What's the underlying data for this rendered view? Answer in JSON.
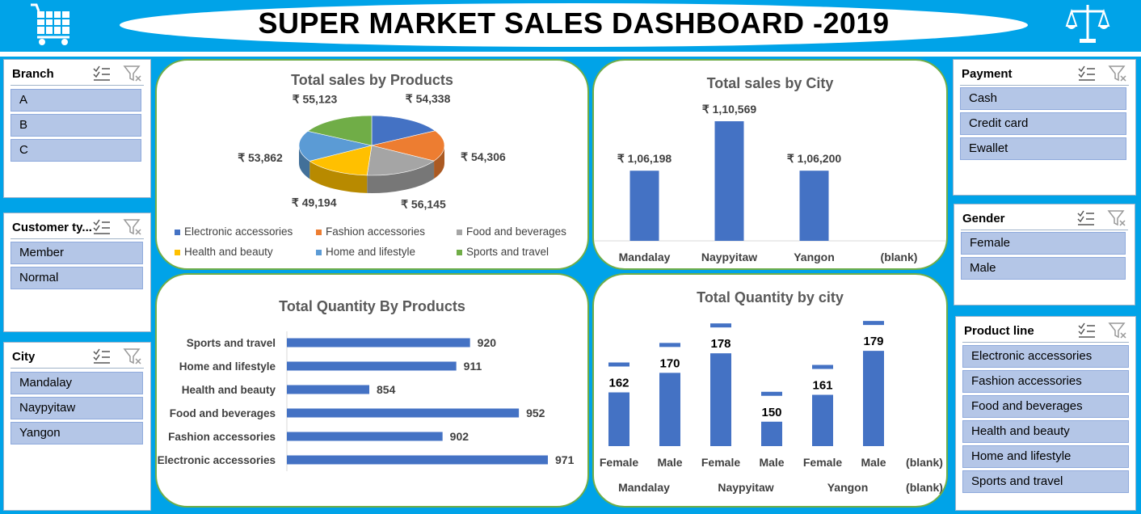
{
  "header": {
    "title": "SUPER MARKET SALES DASHBOARD -2019",
    "left_icon": "shopping-cart-icon",
    "right_icon": "balance-scale-icon"
  },
  "colors": {
    "background": "#00A3E8",
    "slicer_item": "#B4C6E7",
    "panel_border": "#70AD47",
    "bar": "#4472C4",
    "title_text": "#595959"
  },
  "slicers": {
    "branch": {
      "title": "Branch",
      "items": [
        "A",
        "B",
        "C"
      ]
    },
    "customer_type": {
      "title": "Customer ty...",
      "items": [
        "Member",
        "Normal"
      ]
    },
    "city": {
      "title": "City",
      "items": [
        "Mandalay",
        "Naypyitaw",
        "Yangon"
      ]
    },
    "payment": {
      "title": "Payment",
      "items": [
        "Cash",
        "Credit card",
        "Ewallet"
      ]
    },
    "gender": {
      "title": "Gender",
      "items": [
        "Female",
        "Male"
      ]
    },
    "product_line": {
      "title": "Product line",
      "items": [
        "Electronic accessories",
        "Fashion accessories",
        "Food and beverages",
        "Health and beauty",
        "Home and lifestyle",
        "Sports and travel"
      ]
    }
  },
  "chart_data": [
    {
      "type": "pie",
      "title": "Total sales  by Products",
      "slices": [
        {
          "name": "Electronic accessories",
          "value": 54338,
          "label": "₹ 54,338",
          "color": "#4472C4"
        },
        {
          "name": "Fashion accessories",
          "value": 54306,
          "label": "₹ 54,306",
          "color": "#ED7D31"
        },
        {
          "name": "Food and beverages",
          "value": 56145,
          "label": "₹ 56,145",
          "color": "#A5A5A5"
        },
        {
          "name": "Health and beauty",
          "value": 49194,
          "label": "₹ 49,194",
          "color": "#FFC000"
        },
        {
          "name": "Home and lifestyle",
          "value": 53862,
          "label": "₹ 53,862",
          "color": "#5B9BD5"
        },
        {
          "name": "Sports and travel",
          "value": 55123,
          "label": "₹ 55,123",
          "color": "#70AD47"
        }
      ],
      "legend": "bottom"
    },
    {
      "type": "bar",
      "title": "Total sales by City",
      "categories": [
        "Mandalay",
        "Naypyitaw",
        "Yangon",
        "(blank)"
      ],
      "values": [
        106198,
        110569,
        106200,
        null
      ],
      "labels": [
        "₹ 1,06,198",
        "₹ 1,10,569",
        "₹ 1,06,200",
        ""
      ],
      "ylim": [
        100000,
        112000
      ]
    },
    {
      "type": "bar",
      "orientation": "horizontal",
      "title": "Total Quantity By Products",
      "categories": [
        "Sports and travel",
        "Home and lifestyle",
        "Health and beauty",
        "Food and beverages",
        "Fashion accessories",
        "Electronic accessories"
      ],
      "values": [
        920,
        911,
        854,
        952,
        902,
        971
      ],
      "xlim": [
        800,
        980
      ]
    },
    {
      "type": "bar",
      "title": "Total  Quantity by city",
      "groups": [
        "Mandalay",
        "Naypyitaw",
        "Yangon",
        "(blank)"
      ],
      "categories": [
        "Female",
        "Male",
        "Female",
        "Male",
        "Female",
        "Male",
        "(blank)"
      ],
      "values": [
        162,
        170,
        178,
        150,
        161,
        179,
        null
      ],
      "ylim": [
        140,
        185
      ]
    }
  ]
}
